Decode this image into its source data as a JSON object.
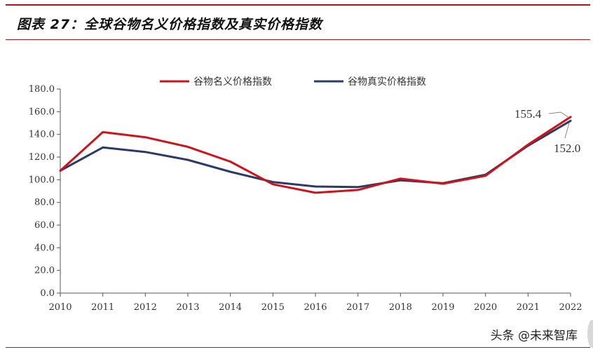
{
  "figure": {
    "title": "图表 27：全球谷物名义价格指数及真实价格指数",
    "watermark": "头条 @未来智库"
  },
  "chart_data": {
    "type": "line",
    "x": [
      "2010",
      "2011",
      "2012",
      "2013",
      "2014",
      "2015",
      "2016",
      "2017",
      "2018",
      "2019",
      "2020",
      "2021",
      "2022"
    ],
    "series": [
      {
        "name": "谷物名义价格指数",
        "color": "#d0121b",
        "values": [
          108.0,
          142.0,
          137.5,
          129.0,
          116.0,
          96.0,
          88.5,
          91.0,
          101.0,
          96.5,
          103.5,
          131.0,
          155.4
        ]
      },
      {
        "name": "谷物真实价格指数",
        "color": "#2b3a67",
        "values": [
          108.0,
          128.5,
          124.5,
          117.5,
          107.0,
          98.0,
          94.0,
          93.5,
          99.5,
          97.0,
          104.5,
          130.0,
          152.0
        ]
      }
    ],
    "ylim": [
      0,
      180
    ],
    "yticks": [
      0,
      20,
      40,
      60,
      80,
      100,
      120,
      140,
      160,
      180
    ],
    "ytick_labels": [
      "0.0",
      "20.0",
      "40.0",
      "60.0",
      "80.0",
      "100.0",
      "120.0",
      "140.0",
      "160.0",
      "180.0"
    ],
    "annotations": [
      {
        "text": "155.4",
        "series": 0,
        "x": "2022",
        "value": 155.4
      },
      {
        "text": "152.0",
        "series": 1,
        "x": "2022",
        "value": 152.0
      }
    ],
    "legend": "top-center",
    "grid": false
  }
}
